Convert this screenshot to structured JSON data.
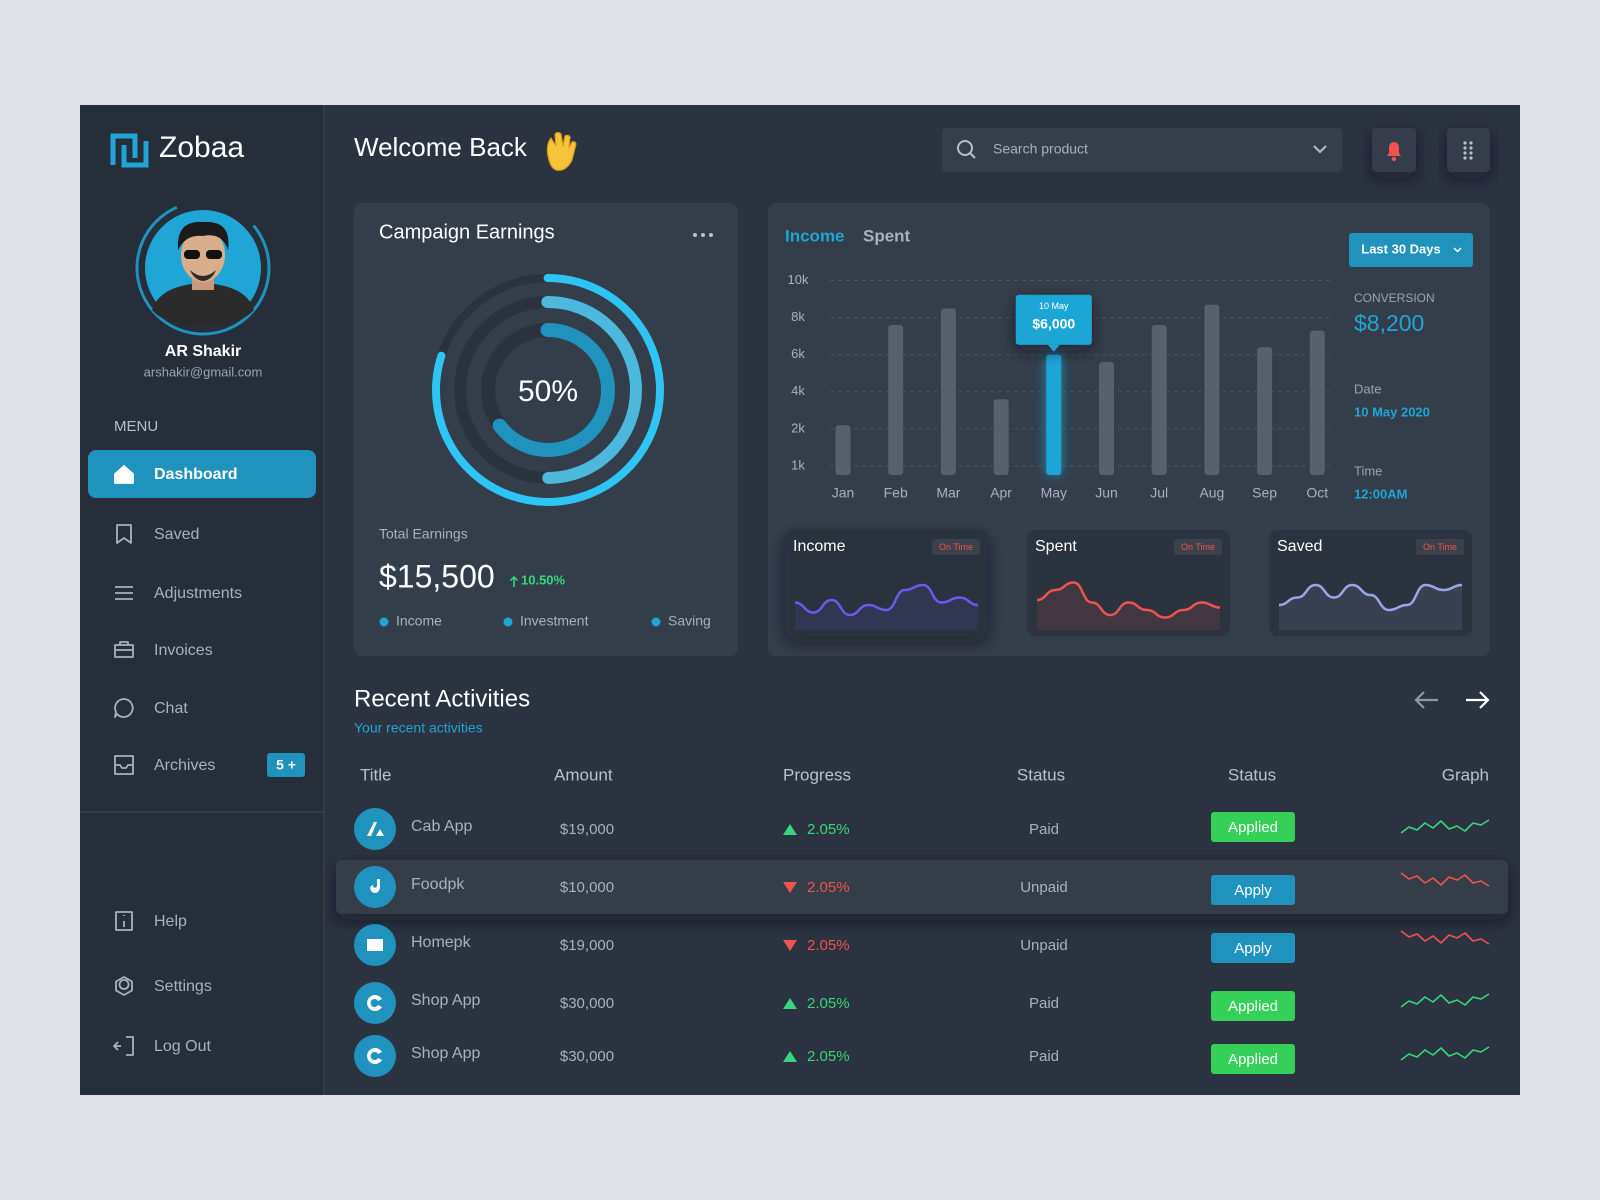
{
  "sidebar": {
    "brand": "Zobaa",
    "user": {
      "name": "AR Shakir",
      "email": "arshakir@gmail.com"
    },
    "menu_title": "MENU",
    "menu": [
      {
        "label": "Dashboard",
        "active": true
      },
      {
        "label": "Saved"
      },
      {
        "label": "Adjustments"
      },
      {
        "label": "Invoices"
      },
      {
        "label": "Chat"
      },
      {
        "label": "Archives",
        "badge": "5 +"
      }
    ],
    "footer_menu": [
      {
        "label": "Help"
      },
      {
        "label": "Settings"
      },
      {
        "label": "Log Out"
      }
    ]
  },
  "header": {
    "title": "Welcome Back",
    "search_placeholder": "Search product"
  },
  "campaign": {
    "title": "Campaign Earnings",
    "center_label": "50%",
    "rings": [
      {
        "value": 80,
        "color": "#2ec5f5"
      },
      {
        "value": 50,
        "color": "#4bb8dc"
      },
      {
        "value": 65,
        "color": "#1f93be"
      }
    ],
    "total_label": "Total Earnings",
    "total": "$15,500",
    "change": "10.50%",
    "legend": [
      "Income",
      "Investment",
      "Saving"
    ]
  },
  "chart_data": {
    "type": "bar",
    "tabs": [
      "Income",
      "Spent"
    ],
    "range_button": "Last 30 Days",
    "categories": [
      "Jan",
      "Feb",
      "Mar",
      "Apr",
      "May",
      "Jun",
      "Jul",
      "Aug",
      "Sep",
      "Oct"
    ],
    "values": [
      2200,
      7600,
      8500,
      3600,
      6000,
      5600,
      7600,
      8700,
      6400,
      7300
    ],
    "color": "#58606c",
    "highlight": "May",
    "highlight_color": "#1fa6d6",
    "tooltip": {
      "date": "10 May",
      "value": 6000,
      "label": "$6,000"
    },
    "ylim": [
      0,
      10000
    ],
    "yticks": [
      {
        "value": 1000,
        "label": "1k"
      },
      {
        "value": 2000,
        "label": "2k"
      },
      {
        "value": 4000,
        "label": "4k"
      },
      {
        "value": 6000,
        "label": "6k"
      },
      {
        "value": 8000,
        "label": "8k"
      },
      {
        "value": 10000,
        "label": "10k"
      }
    ],
    "grid": true
  },
  "conversion": {
    "label": "CONVERSION",
    "value": "$8,200",
    "date_label": "Date",
    "date": "10 May 2020",
    "time_label": "Time",
    "time": "12:00AM"
  },
  "mini_cards": [
    {
      "title": "Income",
      "badge": "On Time",
      "color": "#6a5af0"
    },
    {
      "title": "Spent",
      "badge": "On Time",
      "color": "#ef5350"
    },
    {
      "title": "Saved",
      "badge": "On Time",
      "color": "#9aa6e8"
    }
  ],
  "activities": {
    "title": "Recent Activities",
    "subtitle": "Your recent activities",
    "columns": [
      "Title",
      "Amount",
      "Progress",
      "Status",
      "Status",
      "Graph"
    ],
    "rows": [
      {
        "title": "Cab App",
        "amount": "$19,000",
        "progress": "2.05%",
        "trend": "up",
        "payment": "Paid",
        "status": "Applied"
      },
      {
        "title": "Foodpk",
        "amount": "$10,000",
        "progress": "2.05%",
        "trend": "down",
        "payment": "Unpaid",
        "status": "Apply"
      },
      {
        "title": "Homepk",
        "amount": "$19,000",
        "progress": "2.05%",
        "trend": "down",
        "payment": "Unpaid",
        "status": "Apply"
      },
      {
        "title": "Shop App",
        "amount": "$30,000",
        "progress": "2.05%",
        "trend": "up",
        "payment": "Paid",
        "status": "Applied"
      },
      {
        "title": "Shop App",
        "amount": "$30,000",
        "progress": "2.05%",
        "trend": "up",
        "payment": "Paid",
        "status": "Applied"
      }
    ]
  }
}
